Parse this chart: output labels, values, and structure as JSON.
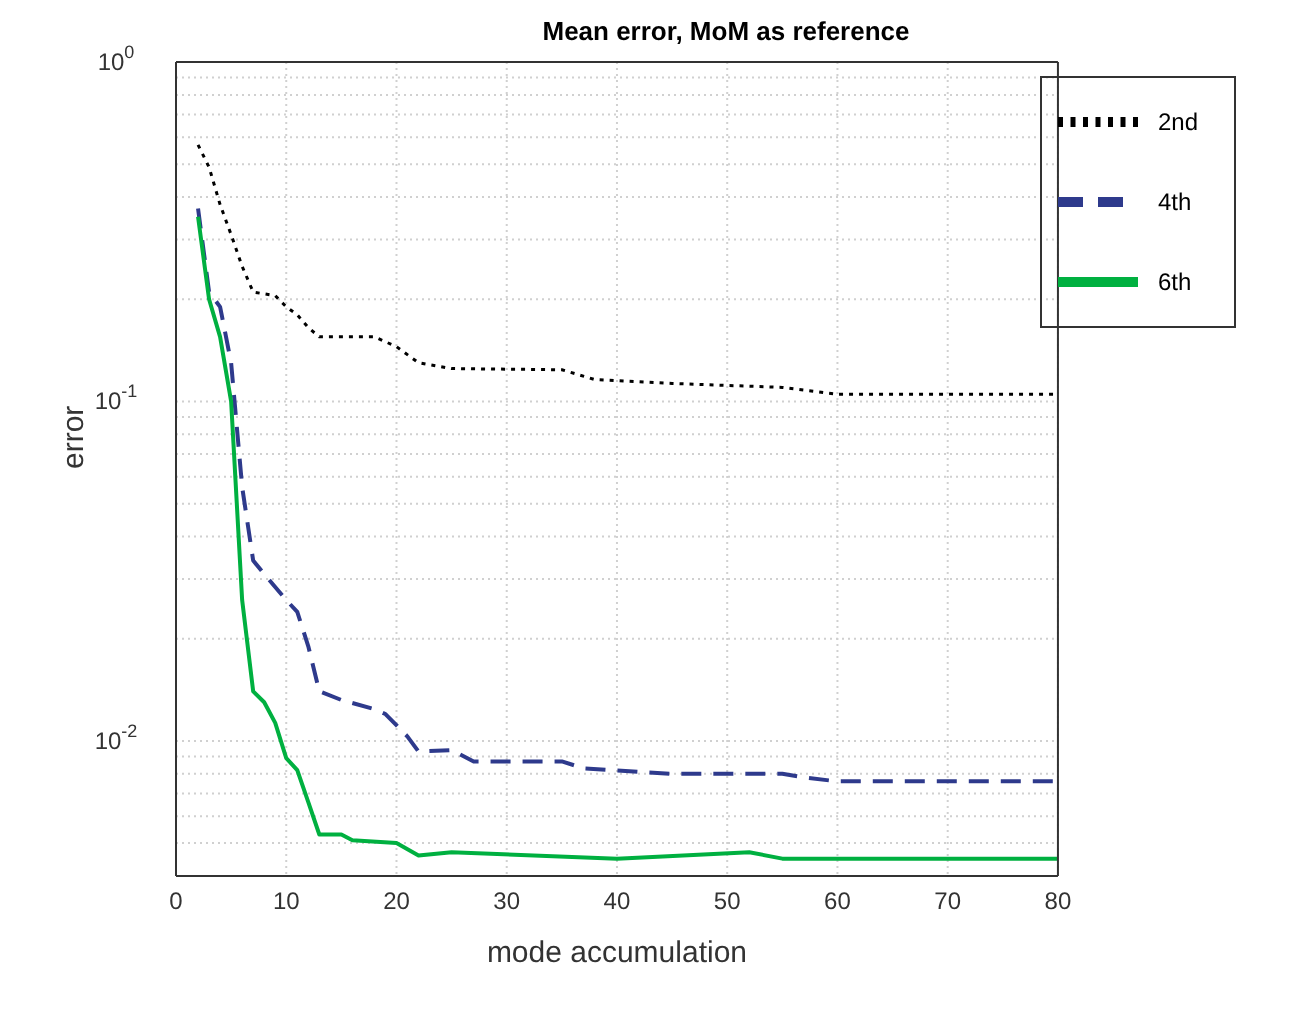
{
  "chart_data": {
    "type": "line",
    "title": "Mean error, MoM as reference",
    "xlabel": "mode accumulation",
    "ylabel": "error",
    "log": "y",
    "grid": true,
    "legend": "top right",
    "marker": "none",
    "xlim": [
      0,
      80
    ],
    "xticks": [
      0,
      10,
      20,
      30,
      40,
      50,
      60,
      70,
      80
    ],
    "ylim": [
      0.004,
      1
    ],
    "yticks": [
      {
        "value": 0.004,
        "label": null
      },
      {
        "value": 0.005,
        "label": null
      },
      {
        "value": 0.006,
        "label": null
      },
      {
        "value": 0.007,
        "label": null
      },
      {
        "value": 0.008,
        "label": null
      },
      {
        "value": 0.009,
        "label": null
      },
      {
        "value": 0.01,
        "label": "10$^{-2}$"
      },
      {
        "value": 0.02,
        "label": null
      },
      {
        "value": 0.03,
        "label": null
      },
      {
        "value": 0.04,
        "label": null
      },
      {
        "value": 0.05,
        "label": null
      },
      {
        "value": 0.06,
        "label": null
      },
      {
        "value": 0.07,
        "label": null
      },
      {
        "value": 0.08,
        "label": null
      },
      {
        "value": 0.09,
        "label": null
      },
      {
        "value": 0.1,
        "label": "10$^{-1}$"
      },
      {
        "value": 0.2,
        "label": null
      },
      {
        "value": 0.3,
        "label": null
      },
      {
        "value": 0.4,
        "label": null
      },
      {
        "value": 0.5,
        "label": null
      },
      {
        "value": 0.6,
        "label": null
      },
      {
        "value": 0.7,
        "label": null
      },
      {
        "value": 0.8,
        "label": null
      },
      {
        "value": 0.9,
        "label": null
      },
      {
        "value": 1,
        "label": "10$^{0}$"
      }
    ],
    "series": [
      {
        "name": "2nd",
        "color": "#000000",
        "line_style": "dotted",
        "x": [
          2,
          3,
          4,
          5,
          6,
          7,
          9,
          10,
          11,
          12,
          13,
          18,
          20,
          22,
          25,
          35,
          38,
          45,
          55,
          60,
          80
        ],
        "values": [
          0.57,
          0.49,
          0.38,
          0.31,
          0.25,
          0.21,
          0.205,
          0.19,
          0.18,
          0.165,
          0.155,
          0.155,
          0.145,
          0.13,
          0.125,
          0.124,
          0.116,
          0.113,
          0.11,
          0.105,
          0.105
        ]
      },
      {
        "name": "4th",
        "color": "#2e3a8c",
        "line_style": "dashed",
        "x": [
          2,
          3,
          4,
          5,
          6,
          7,
          8,
          10,
          11,
          12,
          13,
          15,
          18,
          19,
          21,
          22,
          25,
          27,
          35,
          37,
          45,
          55,
          57,
          60,
          80
        ],
        "values": [
          0.37,
          0.21,
          0.19,
          0.13,
          0.056,
          0.034,
          0.031,
          0.026,
          0.024,
          0.019,
          0.014,
          0.0132,
          0.0124,
          0.012,
          0.0103,
          0.0093,
          0.0094,
          0.0087,
          0.0087,
          0.0083,
          0.008,
          0.008,
          0.0078,
          0.0076,
          0.0076
        ]
      },
      {
        "name": "6th",
        "color": "#00b040",
        "line_style": "solid",
        "x": [
          2,
          3,
          4,
          5,
          6,
          7,
          8,
          9,
          10,
          11,
          12,
          13,
          15,
          16,
          20,
          22,
          25,
          40,
          52,
          55,
          80
        ],
        "values": [
          0.35,
          0.2,
          0.155,
          0.1,
          0.026,
          0.014,
          0.013,
          0.0113,
          0.0089,
          0.0082,
          0.0066,
          0.0053,
          0.0053,
          0.0051,
          0.005,
          0.0046,
          0.0047,
          0.0045,
          0.0047,
          0.0045,
          0.0045
        ]
      }
    ]
  }
}
